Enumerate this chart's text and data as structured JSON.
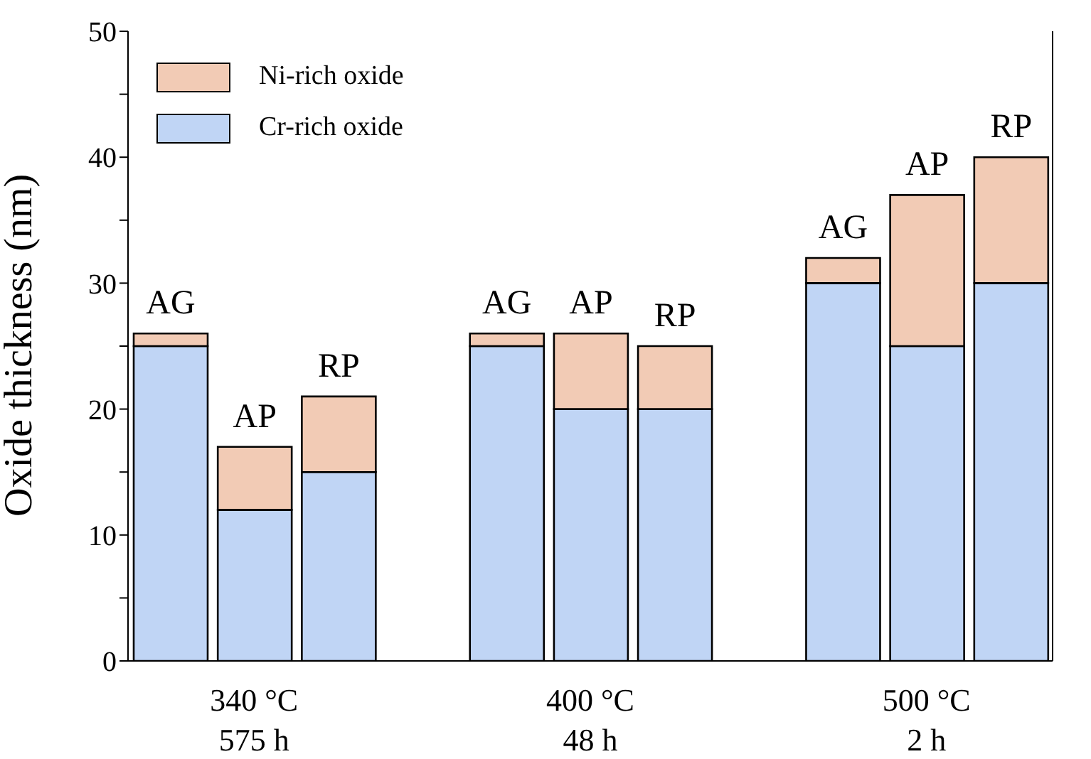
{
  "chart_data": {
    "type": "bar",
    "stacked": true,
    "ylabel": "Oxide thickness (nm)",
    "categories": [
      "AG",
      "AP",
      "RP",
      null,
      "AG",
      "AP",
      "RP",
      null,
      "AG",
      "AP",
      "RP"
    ],
    "annotations": [
      "340 °C\n575 h",
      "400 °C\n48 h",
      "500 °C\n2 h"
    ],
    "series": [
      {
        "name": "Cr-rich oxide",
        "color": "#c0d5f5",
        "values": [
          25,
          12,
          15,
          null,
          25,
          20,
          20,
          null,
          30,
          25,
          30
        ]
      },
      {
        "name": "Ni-rich oxide",
        "color": "#f2cbb5",
        "values": [
          1,
          5,
          6,
          null,
          1,
          6,
          5,
          null,
          2,
          12,
          10
        ]
      }
    ],
    "ylim": [
      0,
      50
    ],
    "yticks": [
      0,
      {
        "value": 5,
        "label": null
      },
      10,
      {
        "value": 15,
        "label": null
      },
      20,
      {
        "value": 25,
        "label": null
      },
      30,
      {
        "value": 35,
        "label": null
      },
      40,
      {
        "value": 45,
        "label": null
      },
      50
    ],
    "legend": "top left",
    "grid": false
  }
}
